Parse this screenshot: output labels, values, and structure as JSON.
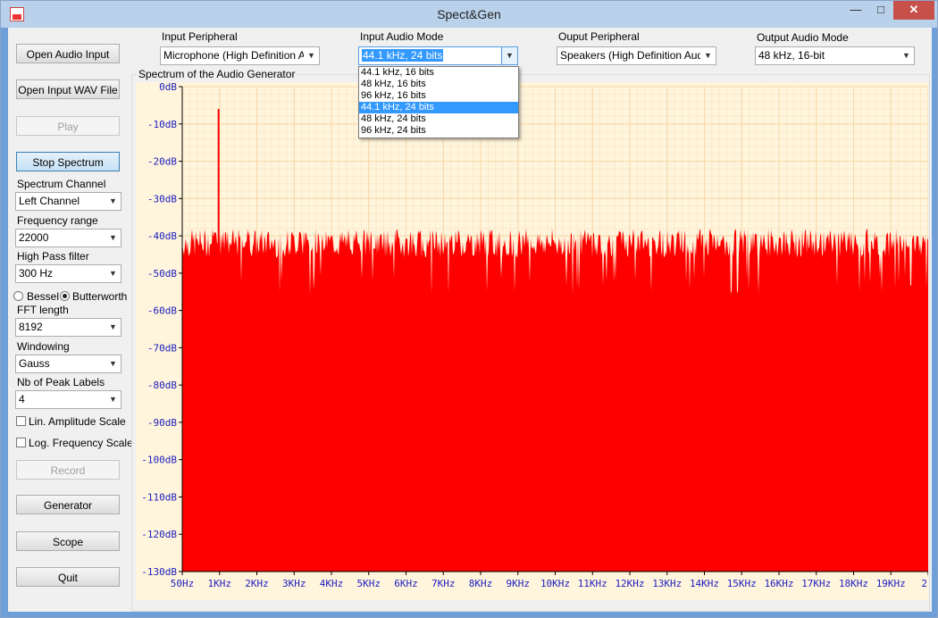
{
  "window": {
    "title": "Spect&Gen",
    "minimize_label": "—",
    "maximize_label": "□",
    "close_label": "✕"
  },
  "left_panel": {
    "open_audio_input": "Open Audio Input",
    "open_input_wav": "Open Input WAV File",
    "play": "Play",
    "stop_spectrum": "Stop Spectrum",
    "spectrum_channel_label": "Spectrum Channel",
    "spectrum_channel_value": "Left Channel",
    "frequency_range_label": "Frequency range",
    "frequency_range_value": "22000",
    "high_pass_label": "High Pass filter",
    "high_pass_value": "300 Hz",
    "bessel_label": "Bessel",
    "butterworth_label": "Butterworth",
    "filter_selected": "Butterworth",
    "fft_length_label": "FFT length",
    "fft_length_value": "8192",
    "windowing_label": "Windowing",
    "windowing_value": "Gauss",
    "peak_labels_label": "Nb of Peak Labels",
    "peak_labels_value": "4",
    "lin_amplitude_label": "Lin. Amplitude Scale",
    "lin_amplitude_checked": false,
    "log_frequency_label": "Log. Frequency Scale",
    "log_frequency_checked": false,
    "record": "Record",
    "generator": "Generator",
    "scope": "Scope",
    "quit": "Quit"
  },
  "top_bar": {
    "input_peripheral_label": "Input Peripheral",
    "input_peripheral_value": "Microphone (High Definition Aud",
    "input_audio_mode_label": "Input Audio Mode",
    "input_audio_mode_value": "44.1 kHz, 24 bits",
    "output_peripheral_label": "Ouput Peripheral",
    "output_peripheral_value": "Speakers (High Definition Audio",
    "output_audio_mode_label": "Output Audio Mode",
    "output_audio_mode_value": "48 kHz, 16-bit"
  },
  "dropdown": {
    "options": [
      "44.1 kHz, 16 bits",
      "48 kHz, 16 bits",
      "96 kHz, 16 bits",
      "44.1 kHz, 24 bits",
      "48 kHz, 24 bits",
      "96 kHz, 24 bits"
    ],
    "highlighted_index": 3
  },
  "spectrum_group_label": "Spectrum of the Audio Generator",
  "chart_data": {
    "type": "area",
    "ylim": [
      -130,
      0
    ],
    "y_ticks": [
      "0dB",
      "-10dB",
      "-20dB",
      "-30dB",
      "-40dB",
      "-50dB",
      "-60dB",
      "-70dB",
      "-80dB",
      "-90dB",
      "-100dB",
      "-110dB",
      "-120dB",
      "-130dB"
    ],
    "x_ticks": [
      "50Hz",
      "1KHz",
      "2KHz",
      "3KHz",
      "4KHz",
      "5KHz",
      "6KHz",
      "7KHz",
      "8KHz",
      "9KHz",
      "10KHz",
      "11KHz",
      "12KHz",
      "13KHz",
      "14KHz",
      "15KHz",
      "16KHz",
      "17KHz",
      "18KHz",
      "19KHz",
      "2"
    ],
    "xlim_hz": [
      50,
      19550
    ],
    "noise_floor_db": [
      -50,
      -38
    ],
    "peak": {
      "freq_hz": 1000,
      "db": -6
    },
    "fill_color": "#ff0000",
    "grid_major_color": "#f5d8a8",
    "grid_minor_color": "#fbe9c9",
    "label_color": "#2020c0"
  }
}
